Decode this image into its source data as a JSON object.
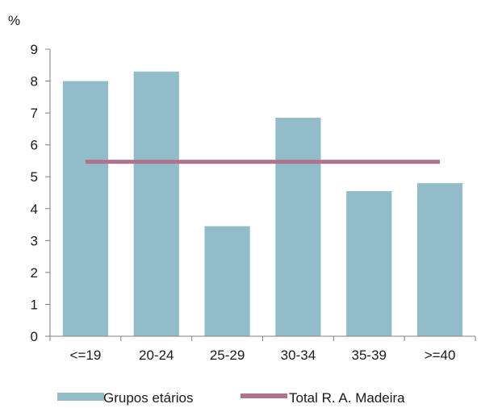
{
  "chart_data": {
    "type": "bar",
    "unit_label": "%",
    "categories": [
      "<=19",
      "20-24",
      "25-29",
      "30-34",
      "35-39",
      ">=40"
    ],
    "series": [
      {
        "name": "Grupos etários",
        "type": "bar",
        "color": "#93bccb",
        "values": [
          8.0,
          8.3,
          3.45,
          6.85,
          4.55,
          4.8
        ]
      },
      {
        "name": "Total R. A. Madeira",
        "type": "line",
        "color": "#b0728f",
        "values": [
          5.47,
          5.47,
          5.47,
          5.47,
          5.47,
          5.47
        ]
      }
    ],
    "ylim": [
      0,
      9
    ],
    "yticks": [
      "0",
      "1",
      "2",
      "3",
      "4",
      "5",
      "6",
      "7",
      "8",
      "9"
    ],
    "grid": false,
    "legend_position": "bottom"
  }
}
